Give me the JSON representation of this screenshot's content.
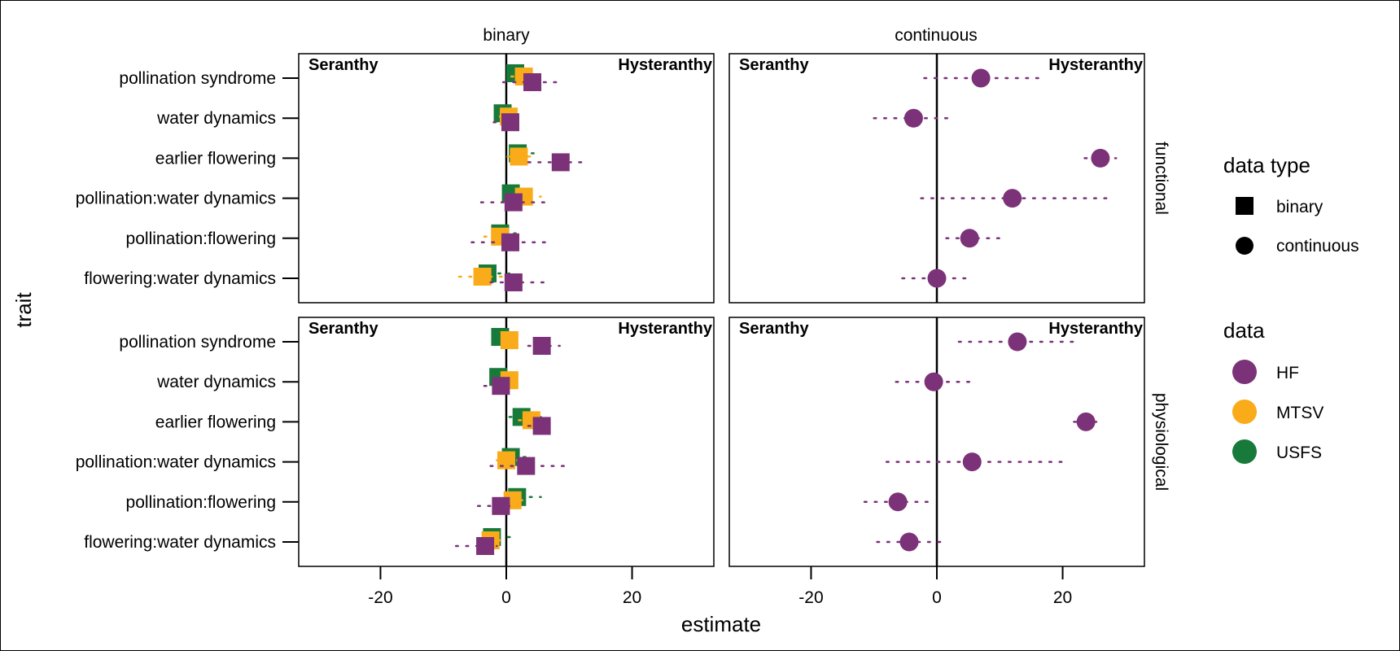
{
  "chart_data": {
    "type": "scatter",
    "xlabel": "estimate",
    "ylabel": "trait",
    "xlim": [
      -33,
      33
    ],
    "x_ticks": [
      -20,
      0,
      20
    ],
    "x_tick_labels": [
      "-20",
      "0",
      "20"
    ],
    "column_facets": [
      "binary",
      "continuous"
    ],
    "row_facets": [
      "functional",
      "physiological"
    ],
    "panel_corner_labels": {
      "left": "Seranthy",
      "right": "Hysteranthy"
    },
    "reference_line_x": 0,
    "grid": false,
    "legend_position": "right",
    "categories": [
      "pollination syndrome",
      "water dynamics",
      "earlier flowering",
      "pollination:water dynamics",
      "pollination:flowering",
      "flowering:water dynamics"
    ],
    "legend_shape": {
      "title": "data type",
      "entries": [
        "binary",
        "continuous"
      ],
      "shapes": [
        "square",
        "circle"
      ]
    },
    "legend_color": {
      "title": "data",
      "entries": [
        "HF",
        "MTSV",
        "USFS"
      ]
    },
    "colors": {
      "HF": "#7b3278",
      "MTSV": "#f9ab1a",
      "USFS": "#187a3a"
    },
    "panels": [
      {
        "column": "binary",
        "row": "functional",
        "shape": "square",
        "series": [
          {
            "name": "USFS",
            "values": [
              2.2,
              0.2,
              2.6,
              1.5,
              -0.2,
              -2.2
            ],
            "lower": [
              0.5,
              -1.0,
              0.8,
              -0.5,
              -2.0,
              -4.5
            ],
            "upper": [
              4.0,
              1.5,
              4.5,
              3.5,
              1.5,
              0.5
            ]
          },
          {
            "name": "MTSV",
            "values": [
              2.8,
              0.4,
              2.0,
              2.8,
              -1.0,
              -3.8
            ],
            "lower": [
              0.8,
              -1.0,
              0.2,
              0.5,
              -3.5,
              -7.5
            ],
            "upper": [
              5.0,
              2.0,
              4.0,
              5.5,
              1.5,
              -0.5
            ]
          },
          {
            "name": "HF",
            "values": [
              3.5,
              0.0,
              8.0,
              0.5,
              0.0,
              0.5
            ],
            "lower": [
              -0.5,
              -2.0,
              3.5,
              -4.0,
              -5.5,
              -2.5
            ],
            "upper": [
              8.5,
              2.5,
              12.0,
              6.5,
              7.0,
              6.0
            ]
          }
        ]
      },
      {
        "column": "continuous",
        "row": "functional",
        "shape": "circle",
        "series": [
          {
            "name": "HF",
            "values": [
              7.0,
              -3.7,
              26.0,
              12.0,
              5.2,
              0.0
            ],
            "lower": [
              -2.0,
              -10.0,
              23.5,
              -2.5,
              1.5,
              -5.5
            ],
            "upper": [
              16.5,
              2.5,
              28.5,
              27.0,
              11.0,
              5.5
            ]
          }
        ]
      },
      {
        "column": "binary",
        "row": "physiological",
        "shape": "square",
        "series": [
          {
            "name": "USFS",
            "values": [
              -0.2,
              -0.5,
              3.2,
              1.5,
              2.5,
              -1.5
            ],
            "lower": [
              -1.5,
              -2.0,
              0.5,
              -0.5,
              0.5,
              -3.0
            ],
            "upper": [
              1.5,
              1.0,
              5.5,
              3.5,
              5.5,
              1.5
            ]
          },
          {
            "name": "MTSV",
            "values": [
              0.5,
              0.5,
              4.0,
              0.0,
              1.0,
              -2.5
            ],
            "lower": [
              -0.5,
              -0.5,
              2.0,
              -1.5,
              -1.0,
              -4.5
            ],
            "upper": [
              1.5,
              1.5,
              5.5,
              2.0,
              3.0,
              -0.5
            ]
          },
          {
            "name": "HF",
            "values": [
              5.0,
              -1.5,
              5.0,
              2.5,
              -1.5,
              -4.0
            ],
            "lower": [
              3.5,
              -3.5,
              3.5,
              -2.5,
              -4.5,
              -8.0
            ],
            "upper": [
              8.5,
              0.5,
              6.5,
              10.0,
              0.5,
              -1.5
            ]
          }
        ]
      },
      {
        "column": "continuous",
        "row": "physiological",
        "shape": "circle",
        "series": [
          {
            "name": "HF",
            "values": [
              12.8,
              -0.5,
              23.7,
              5.6,
              -6.2,
              -4.4
            ],
            "lower": [
              3.5,
              -6.5,
              21.8,
              -8.0,
              -11.5,
              -9.5
            ],
            "upper": [
              22.0,
              5.5,
              26.5,
              20.0,
              -0.5,
              1.5
            ]
          }
        ]
      }
    ]
  }
}
